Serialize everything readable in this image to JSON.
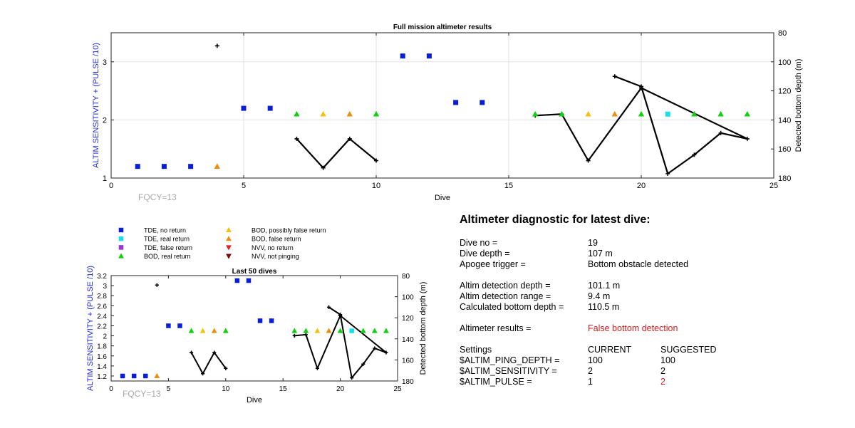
{
  "charts": {
    "full": {
      "title": "Full mission altimeter results",
      "xlabel": "Dive",
      "ylabel_left": "ALTIM SENSITIVITY + (PULSE /10)",
      "ylabel_right": "Detected bottom depth (m)",
      "fqcy": "FQCY=13"
    },
    "last50": {
      "title": "Last 50 dives",
      "xlabel": "Dive",
      "ylabel_left": "ALTIM SENSITIVITY + (PULSE /10)",
      "ylabel_right": "Detected bottom depth (m)",
      "fqcy": "FQCY=13"
    }
  },
  "legend": [
    {
      "label": "TDE, no return",
      "marker": "square",
      "color": "#0a1ed6"
    },
    {
      "label": "TDE, real return",
      "marker": "square",
      "color": "#19e0e6"
    },
    {
      "label": "TDE, false return",
      "marker": "square",
      "color": "#9a36d1"
    },
    {
      "label": "BOD, real return",
      "marker": "triangle-up",
      "color": "#10d010"
    },
    {
      "label": "BOD, possibly false return",
      "marker": "triangle-up",
      "color": "#f5c010"
    },
    {
      "label": "BOD, false return",
      "marker": "triangle-up",
      "color": "#ea8f10"
    },
    {
      "label": "NVV, no return",
      "marker": "triangle-down",
      "color": "#e02020"
    },
    {
      "label": "NVV, not pinging",
      "marker": "triangle-down",
      "color": "#7a0a0a"
    }
  ],
  "chart_data": [
    {
      "type": "scatter",
      "title": "Full mission altimeter results",
      "xlabel": "Dive",
      "ylabel": "ALTIM SENSITIVITY + (PULSE /10)",
      "y2label": "Detected bottom depth (m)",
      "xlim": [
        0,
        25
      ],
      "ylim": [
        1,
        3.5
      ],
      "y2lim": [
        80,
        180
      ],
      "y2_reversed": true,
      "xticks": [
        0,
        5,
        10,
        15,
        20,
        25
      ],
      "yticks": [
        1,
        2,
        3
      ],
      "y2ticks": [
        80,
        100,
        120,
        140,
        160,
        180
      ],
      "grid": true,
      "markers": [
        {
          "x": 1,
          "y": 1.2,
          "series": "TDE, no return"
        },
        {
          "x": 2,
          "y": 1.2,
          "series": "TDE, no return"
        },
        {
          "x": 3,
          "y": 1.2,
          "series": "TDE, no return"
        },
        {
          "x": 4,
          "y": 1.2,
          "series": "BOD, false return"
        },
        {
          "x": 5,
          "y": 2.2,
          "series": "TDE, no return"
        },
        {
          "x": 6,
          "y": 2.2,
          "series": "TDE, no return"
        },
        {
          "x": 7,
          "y": 2.1,
          "series": "BOD, real return"
        },
        {
          "x": 8,
          "y": 2.1,
          "series": "BOD, possibly false return"
        },
        {
          "x": 9,
          "y": 2.1,
          "series": "BOD, false return"
        },
        {
          "x": 10,
          "y": 2.1,
          "series": "BOD, real return"
        },
        {
          "x": 11,
          "y": 3.1,
          "series": "TDE, no return"
        },
        {
          "x": 12,
          "y": 3.1,
          "series": "TDE, no return"
        },
        {
          "x": 13,
          "y": 2.3,
          "series": "TDE, no return"
        },
        {
          "x": 14,
          "y": 2.3,
          "series": "TDE, no return"
        },
        {
          "x": 16,
          "y": 2.1,
          "series": "BOD, real return"
        },
        {
          "x": 17,
          "y": 2.1,
          "series": "BOD, real return"
        },
        {
          "x": 18,
          "y": 2.1,
          "series": "BOD, possibly false return"
        },
        {
          "x": 19,
          "y": 2.1,
          "series": "BOD, false return"
        },
        {
          "x": 20,
          "y": 2.1,
          "series": "BOD, real return"
        },
        {
          "x": 21,
          "y": 2.1,
          "series": "TDE, real return"
        },
        {
          "x": 22,
          "y": 2.1,
          "series": "BOD, real return"
        },
        {
          "x": 23,
          "y": 2.1,
          "series": "BOD, real return"
        },
        {
          "x": 24,
          "y": 2.1,
          "series": "BOD, real return"
        }
      ],
      "depth_isolated": [
        {
          "x": 4,
          "depth": 89
        }
      ],
      "depth_lines": [
        [
          {
            "x": 7,
            "depth": 153
          },
          {
            "x": 8,
            "depth": 173
          },
          {
            "x": 9,
            "depth": 153
          },
          {
            "x": 10,
            "depth": 168
          }
        ],
        [
          {
            "x": 16,
            "depth": 137
          },
          {
            "x": 17,
            "depth": 136
          },
          {
            "x": 18,
            "depth": 168
          },
          {
            "x": 20,
            "depth": 118
          },
          {
            "x": 24,
            "depth": 153
          },
          {
            "x": 23,
            "depth": 149
          },
          {
            "x": 22,
            "depth": 164
          },
          {
            "x": 21,
            "depth": 177
          },
          {
            "x": 20,
            "depth": 117
          },
          {
            "x": 19,
            "depth": 110
          }
        ]
      ]
    },
    {
      "type": "scatter",
      "title": "Last 50 dives",
      "xlabel": "Dive",
      "ylabel": "ALTIM SENSITIVITY + (PULSE /10)",
      "y2label": "Detected bottom depth (m)",
      "xlim": [
        0,
        25
      ],
      "ylim": [
        1.1,
        3.2
      ],
      "y2lim": [
        80,
        180
      ],
      "y2_reversed": true,
      "xticks": [
        0,
        5,
        10,
        15,
        20,
        25
      ],
      "yticks": [
        1.2,
        1.4,
        1.6,
        1.8,
        2,
        2.2,
        2.4,
        2.6,
        2.8,
        3,
        3.2
      ],
      "y2ticks": [
        80,
        100,
        120,
        140,
        160,
        180
      ],
      "grid": false,
      "same_data_as": "Full mission altimeter results"
    }
  ],
  "diagnostic": {
    "title": "Altimeter diagnostic for latest dive:",
    "dive_no_label": "Dive no =",
    "dive_no": "19",
    "dive_depth_label": "Dive depth =",
    "dive_depth": "107 m",
    "apogee_label": "Apogee trigger =",
    "apogee": "Bottom obstacle detected",
    "altim_depth_label": "Altim detection depth =",
    "altim_depth": "101.1 m",
    "altim_range_label": "Altim detection range =",
    "altim_range": "9.4 m",
    "calc_depth_label": "Calculated bottom depth =",
    "calc_depth": "110.5 m",
    "results_label": "Altimeter results =",
    "results": "False bottom detection",
    "settings_label": "Settings",
    "current_label": "CURRENT",
    "suggested_label": "SUGGESTED",
    "settings": [
      {
        "name": "$ALTIM_PING_DEPTH =",
        "current": "100",
        "suggested": "100",
        "changed": false
      },
      {
        "name": "$ALTIM_SENSITIVITY =",
        "current": "2",
        "suggested": "2",
        "changed": false
      },
      {
        "name": "$ALTIM_PULSE =",
        "current": "1",
        "suggested": "2",
        "changed": true
      }
    ]
  }
}
